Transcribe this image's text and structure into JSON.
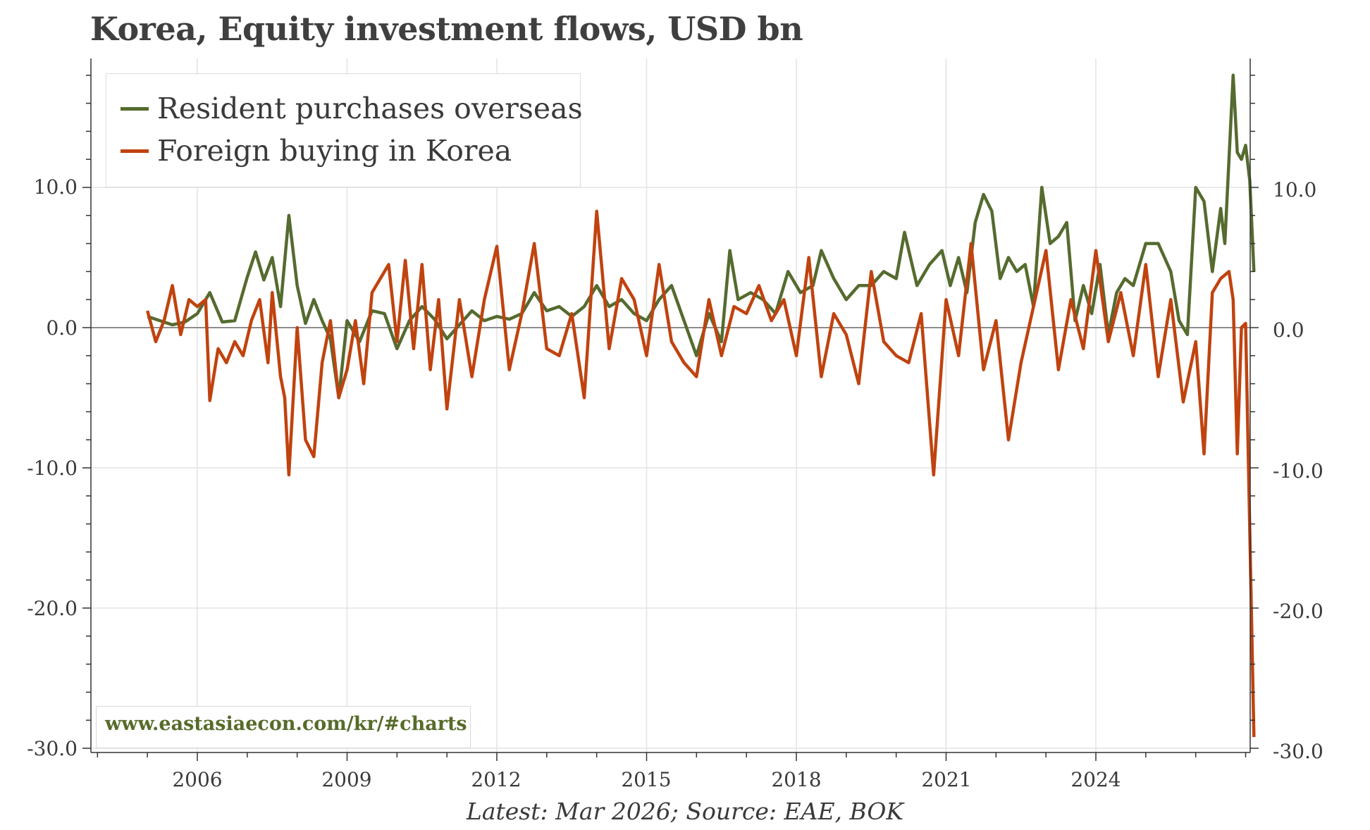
{
  "title": "Korea, Equity investment flows, USD bn",
  "source_note": "Latest: Mar 2026; Source: EAE, BOK",
  "watermark": "www.eastasiaecon.com/kr/#charts",
  "legend": [
    {
      "label": "Resident purchases overseas",
      "color": "#556b2f"
    },
    {
      "label": "Foreign buying in Korea",
      "color": "#c0430f"
    }
  ],
  "chart_data": {
    "type": "line",
    "title": "Korea, Equity investment flows, USD bn",
    "xlabel": "",
    "ylabel": "",
    "x_ticks": [
      "2006",
      "2009",
      "2012",
      "2015",
      "2018",
      "2021",
      "2024"
    ],
    "y_ticks_left": [
      "10.0",
      "0.0",
      "-10.0",
      "-20.0",
      "-30.0"
    ],
    "y_ticks_right": [
      "10.0",
      "0.0",
      "-10.0",
      "-20.0",
      "-30.0"
    ],
    "xlim": [
      "2004-01",
      "2027-03"
    ],
    "ylim": [
      -30.5,
      19.5
    ],
    "grid": true,
    "zero_line": true,
    "legend_position": "top-left",
    "series": [
      {
        "name": "Resident purchases overseas",
        "color": "#556b2f",
        "points": [
          [
            "2005-01",
            0.8
          ],
          [
            "2005-04",
            0.5
          ],
          [
            "2005-07",
            0.2
          ],
          [
            "2005-10",
            0.4
          ],
          [
            "2006-01",
            1.0
          ],
          [
            "2006-04",
            2.5
          ],
          [
            "2006-07",
            0.4
          ],
          [
            "2006-10",
            0.5
          ],
          [
            "2007-01",
            3.6
          ],
          [
            "2007-03",
            5.4
          ],
          [
            "2007-05",
            3.4
          ],
          [
            "2007-07",
            5.0
          ],
          [
            "2007-09",
            1.5
          ],
          [
            "2007-11",
            8.0
          ],
          [
            "2008-01",
            3.0
          ],
          [
            "2008-03",
            0.3
          ],
          [
            "2008-05",
            2.0
          ],
          [
            "2008-07",
            0.5
          ],
          [
            "2008-09",
            -0.8
          ],
          [
            "2008-11",
            -5.0
          ],
          [
            "2009-01",
            0.5
          ],
          [
            "2009-04",
            -1.0
          ],
          [
            "2009-07",
            1.2
          ],
          [
            "2009-10",
            1.0
          ],
          [
            "2010-01",
            -1.5
          ],
          [
            "2010-04",
            0.5
          ],
          [
            "2010-07",
            1.5
          ],
          [
            "2010-10",
            0.6
          ],
          [
            "2011-01",
            -0.8
          ],
          [
            "2011-04",
            0.2
          ],
          [
            "2011-07",
            1.2
          ],
          [
            "2011-10",
            0.5
          ],
          [
            "2012-01",
            0.8
          ],
          [
            "2012-04",
            0.6
          ],
          [
            "2012-07",
            1.0
          ],
          [
            "2012-10",
            2.5
          ],
          [
            "2013-01",
            1.2
          ],
          [
            "2013-04",
            1.5
          ],
          [
            "2013-07",
            0.8
          ],
          [
            "2013-10",
            1.5
          ],
          [
            "2014-01",
            3.0
          ],
          [
            "2014-04",
            1.5
          ],
          [
            "2014-07",
            2.0
          ],
          [
            "2014-10",
            1.0
          ],
          [
            "2015-01",
            0.5
          ],
          [
            "2015-04",
            2.0
          ],
          [
            "2015-07",
            3.0
          ],
          [
            "2015-10",
            0.5
          ],
          [
            "2016-01",
            -2.0
          ],
          [
            "2016-04",
            1.0
          ],
          [
            "2016-07",
            -1.0
          ],
          [
            "2016-09",
            5.5
          ],
          [
            "2016-11",
            2.0
          ],
          [
            "2017-02",
            2.5
          ],
          [
            "2017-05",
            2.0
          ],
          [
            "2017-08",
            1.0
          ],
          [
            "2017-11",
            4.0
          ],
          [
            "2018-02",
            2.5
          ],
          [
            "2018-05",
            3.0
          ],
          [
            "2018-07",
            5.5
          ],
          [
            "2018-10",
            3.5
          ],
          [
            "2019-01",
            2.0
          ],
          [
            "2019-04",
            3.0
          ],
          [
            "2019-07",
            3.0
          ],
          [
            "2019-10",
            4.0
          ],
          [
            "2020-01",
            3.5
          ],
          [
            "2020-03",
            6.8
          ],
          [
            "2020-06",
            3.0
          ],
          [
            "2020-09",
            4.5
          ],
          [
            "2020-12",
            5.5
          ],
          [
            "2021-02",
            3.0
          ],
          [
            "2021-04",
            5.0
          ],
          [
            "2021-06",
            2.5
          ],
          [
            "2021-08",
            7.5
          ],
          [
            "2021-10",
            9.5
          ],
          [
            "2021-12",
            8.3
          ],
          [
            "2022-02",
            3.5
          ],
          [
            "2022-04",
            5.0
          ],
          [
            "2022-06",
            4.0
          ],
          [
            "2022-08",
            4.5
          ],
          [
            "2022-10",
            1.5
          ],
          [
            "2022-12",
            10.0
          ],
          [
            "2023-02",
            6.0
          ],
          [
            "2023-04",
            6.5
          ],
          [
            "2023-06",
            7.5
          ],
          [
            "2023-08",
            0.5
          ],
          [
            "2023-10",
            3.0
          ],
          [
            "2023-12",
            1.0
          ],
          [
            "2024-02",
            4.5
          ],
          [
            "2024-04",
            -0.5
          ],
          [
            "2024-06",
            2.5
          ],
          [
            "2024-08",
            3.5
          ],
          [
            "2024-10",
            3.0
          ],
          [
            "2025-01",
            6.0
          ],
          [
            "2025-04",
            6.0
          ],
          [
            "2025-07",
            4.0
          ],
          [
            "2025-09",
            0.5
          ],
          [
            "2025-11",
            -0.5
          ],
          [
            "2026-01",
            10.0
          ],
          [
            "2026-03",
            9.0
          ],
          [
            "2026-05",
            4.0
          ],
          [
            "2026-07",
            8.5
          ],
          [
            "2026-08",
            6.0
          ],
          [
            "2026-10",
            18.0
          ],
          [
            "2026-11",
            12.5
          ],
          [
            "2026-12",
            12.0
          ],
          [
            "2027-01",
            13.0
          ],
          [
            "2027-02",
            10.5
          ],
          [
            "2027-03",
            4.0
          ]
        ]
      },
      {
        "name": "Foreign buying in Korea",
        "color": "#c0430f",
        "points": [
          [
            "2005-01",
            1.2
          ],
          [
            "2005-03",
            -1.0
          ],
          [
            "2005-05",
            0.5
          ],
          [
            "2005-07",
            3.0
          ],
          [
            "2005-09",
            -0.5
          ],
          [
            "2005-11",
            2.0
          ],
          [
            "2006-01",
            1.5
          ],
          [
            "2006-03",
            2.0
          ],
          [
            "2006-04",
            -5.2
          ],
          [
            "2006-06",
            -1.5
          ],
          [
            "2006-08",
            -2.5
          ],
          [
            "2006-10",
            -1.0
          ],
          [
            "2006-12",
            -2.0
          ],
          [
            "2007-02",
            0.5
          ],
          [
            "2007-04",
            2.0
          ],
          [
            "2007-06",
            -2.5
          ],
          [
            "2007-07",
            2.5
          ],
          [
            "2007-09",
            -3.5
          ],
          [
            "2007-10",
            -5.0
          ],
          [
            "2007-11",
            -10.5
          ],
          [
            "2008-01",
            0.0
          ],
          [
            "2008-03",
            -8.0
          ],
          [
            "2008-05",
            -9.2
          ],
          [
            "2008-07",
            -2.5
          ],
          [
            "2008-09",
            0.5
          ],
          [
            "2008-11",
            -5.0
          ],
          [
            "2009-01",
            -3.0
          ],
          [
            "2009-03",
            0.5
          ],
          [
            "2009-05",
            -4.0
          ],
          [
            "2009-07",
            2.5
          ],
          [
            "2009-09",
            3.5
          ],
          [
            "2009-11",
            4.5
          ],
          [
            "2010-01",
            -1.0
          ],
          [
            "2010-03",
            4.8
          ],
          [
            "2010-05",
            -1.5
          ],
          [
            "2010-07",
            4.5
          ],
          [
            "2010-09",
            -3.0
          ],
          [
            "2010-11",
            2.0
          ],
          [
            "2011-01",
            -5.8
          ],
          [
            "2011-04",
            2.0
          ],
          [
            "2011-07",
            -3.5
          ],
          [
            "2011-10",
            2.0
          ],
          [
            "2012-01",
            5.8
          ],
          [
            "2012-04",
            -3.0
          ],
          [
            "2012-07",
            1.0
          ],
          [
            "2012-10",
            6.0
          ],
          [
            "2013-01",
            -1.5
          ],
          [
            "2013-04",
            -2.0
          ],
          [
            "2013-07",
            1.0
          ],
          [
            "2013-10",
            -5.0
          ],
          [
            "2014-01",
            8.3
          ],
          [
            "2014-04",
            -1.5
          ],
          [
            "2014-07",
            3.5
          ],
          [
            "2014-10",
            2.0
          ],
          [
            "2015-01",
            -2.0
          ],
          [
            "2015-04",
            4.5
          ],
          [
            "2015-07",
            -1.0
          ],
          [
            "2015-10",
            -2.5
          ],
          [
            "2016-01",
            -3.5
          ],
          [
            "2016-04",
            2.0
          ],
          [
            "2016-07",
            -2.0
          ],
          [
            "2016-10",
            1.5
          ],
          [
            "2017-01",
            1.0
          ],
          [
            "2017-04",
            3.0
          ],
          [
            "2017-07",
            0.5
          ],
          [
            "2017-10",
            2.0
          ],
          [
            "2018-01",
            -2.0
          ],
          [
            "2018-04",
            5.0
          ],
          [
            "2018-07",
            -3.5
          ],
          [
            "2018-10",
            1.0
          ],
          [
            "2019-01",
            -0.5
          ],
          [
            "2019-04",
            -4.0
          ],
          [
            "2019-07",
            4.0
          ],
          [
            "2019-10",
            -1.0
          ],
          [
            "2020-01",
            -2.0
          ],
          [
            "2020-04",
            -2.5
          ],
          [
            "2020-07",
            1.0
          ],
          [
            "2020-10",
            -10.5
          ],
          [
            "2021-01",
            2.0
          ],
          [
            "2021-04",
            -2.0
          ],
          [
            "2021-07",
            6.0
          ],
          [
            "2021-10",
            -3.0
          ],
          [
            "2022-01",
            0.5
          ],
          [
            "2022-04",
            -8.0
          ],
          [
            "2022-07",
            -2.5
          ],
          [
            "2022-10",
            1.5
          ],
          [
            "2023-01",
            5.5
          ],
          [
            "2023-04",
            -3.0
          ],
          [
            "2023-07",
            2.0
          ],
          [
            "2023-10",
            -1.5
          ],
          [
            "2024-01",
            5.5
          ],
          [
            "2024-04",
            -1.0
          ],
          [
            "2024-07",
            2.5
          ],
          [
            "2024-10",
            -2.0
          ],
          [
            "2025-01",
            4.5
          ],
          [
            "2025-04",
            -3.5
          ],
          [
            "2025-07",
            2.0
          ],
          [
            "2025-10",
            -5.3
          ],
          [
            "2026-01",
            -1.0
          ],
          [
            "2026-03",
            -9.0
          ],
          [
            "2026-05",
            2.5
          ],
          [
            "2026-07",
            3.5
          ],
          [
            "2026-09",
            4.0
          ],
          [
            "2026-10",
            2.0
          ],
          [
            "2026-11",
            -9.0
          ],
          [
            "2026-12",
            0.0
          ],
          [
            "2027-01",
            0.3
          ],
          [
            "2027-03",
            -29.2
          ]
        ]
      }
    ]
  }
}
